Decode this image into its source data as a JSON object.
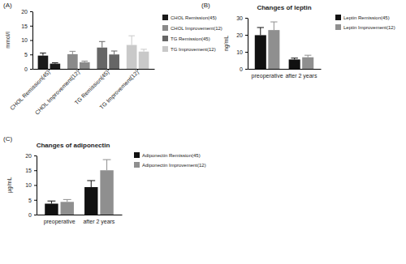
{
  "chart_data": [
    {
      "type": "bar",
      "panel_label": "(A)",
      "y_label": "mmol/l",
      "categories": [
        "CHOL Remission(45)",
        "CHOL Improvement(12)",
        "TG Remission(45)",
        "TG Improvement(12)"
      ],
      "values": [
        [
          4.6,
          1.8
        ],
        [
          5.1,
          2.3
        ],
        [
          7.4,
          5.0
        ],
        [
          8.3,
          6.0
        ]
      ],
      "errors": [
        [
          0.9,
          0.3
        ],
        [
          1.0,
          0.4
        ],
        [
          2.1,
          1.2
        ],
        [
          3.2,
          0.8
        ]
      ],
      "colors": [
        "#1a1a1a",
        "#8a8a8a",
        "#666666",
        "#c9c9c9"
      ],
      "ylim": [
        0,
        20
      ],
      "yticks": [
        0,
        5,
        10,
        15,
        20
      ],
      "legend": "right"
    },
    {
      "type": "bar",
      "panel_label": "(B)",
      "title": "Changes of leptin",
      "y_label": "ng/mL",
      "categories": [
        "preoperative",
        "after 2 years"
      ],
      "series": [
        {
          "name": "Leptin Remission(45)",
          "color": "#111111",
          "values": [
            19.8,
            5.5
          ],
          "errors": [
            4.5,
            0.8
          ]
        },
        {
          "name": "Leptin Improvement(12)",
          "color": "#8f8f8f",
          "values": [
            22.8,
            6.8
          ],
          "errors": [
            4.8,
            1.2
          ]
        }
      ],
      "ylim": [
        0,
        30
      ],
      "yticks": [
        0,
        10,
        20,
        30
      ],
      "legend": "right"
    },
    {
      "type": "bar",
      "panel_label": "(C)",
      "title": "Changes of adiponectin",
      "y_label": "μg/mL",
      "categories": [
        "preoperative",
        "after 2 years"
      ],
      "series": [
        {
          "name": "Adiponectin Remission(45)",
          "color": "#111111",
          "values": [
            3.7,
            9.3
          ],
          "errors": [
            0.9,
            2.2
          ]
        },
        {
          "name": "Adiponectin Improvement(12)",
          "color": "#8f8f8f",
          "values": [
            4.3,
            15.0
          ],
          "errors": [
            0.8,
            3.6
          ]
        }
      ],
      "ylim": [
        0,
        20
      ],
      "yticks": [
        0,
        5,
        10,
        15,
        20
      ],
      "legend": "right"
    }
  ]
}
